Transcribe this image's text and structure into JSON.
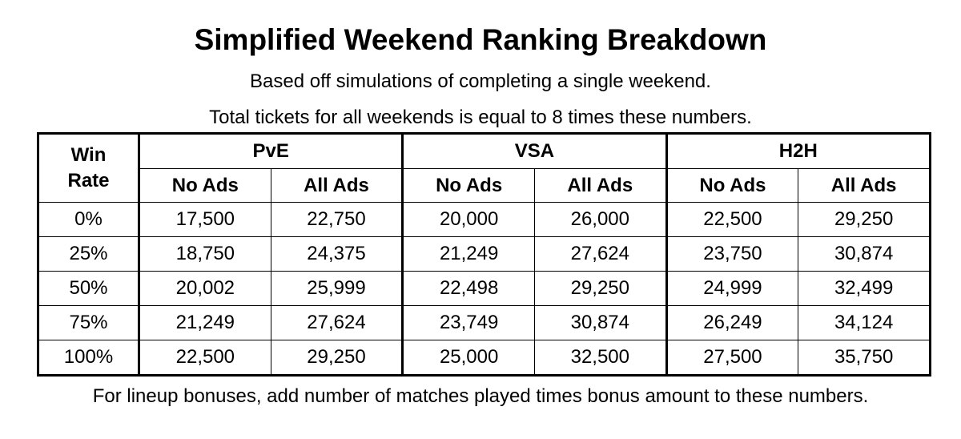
{
  "header": {
    "title": "Simplified Weekend Ranking Breakdown",
    "subtitle": "Based off simulations of completing a single weekend.",
    "subtitle2": "Total tickets for all weekends is equal to 8 times these numbers."
  },
  "table": {
    "corner": "Win Rate",
    "groups": [
      "PvE",
      "VSA",
      "H2H"
    ],
    "subheaders": [
      "No Ads",
      "All Ads",
      "No Ads",
      "All Ads",
      "No Ads",
      "All Ads"
    ],
    "rows": [
      [
        "0%",
        "17,500",
        "22,750",
        "20,000",
        "26,000",
        "22,500",
        "29,250"
      ],
      [
        "25%",
        "18,750",
        "24,375",
        "21,249",
        "27,624",
        "23,750",
        "30,874"
      ],
      [
        "50%",
        "20,002",
        "25,999",
        "22,498",
        "29,250",
        "24,999",
        "32,499"
      ],
      [
        "75%",
        "21,249",
        "27,624",
        "23,749",
        "30,874",
        "26,249",
        "34,124"
      ],
      [
        "100%",
        "22,500",
        "29,250",
        "25,000",
        "32,500",
        "27,500",
        "35,750"
      ]
    ]
  },
  "footer": {
    "note": "For lineup bonuses, add number of matches played times bonus amount to these numbers."
  }
}
